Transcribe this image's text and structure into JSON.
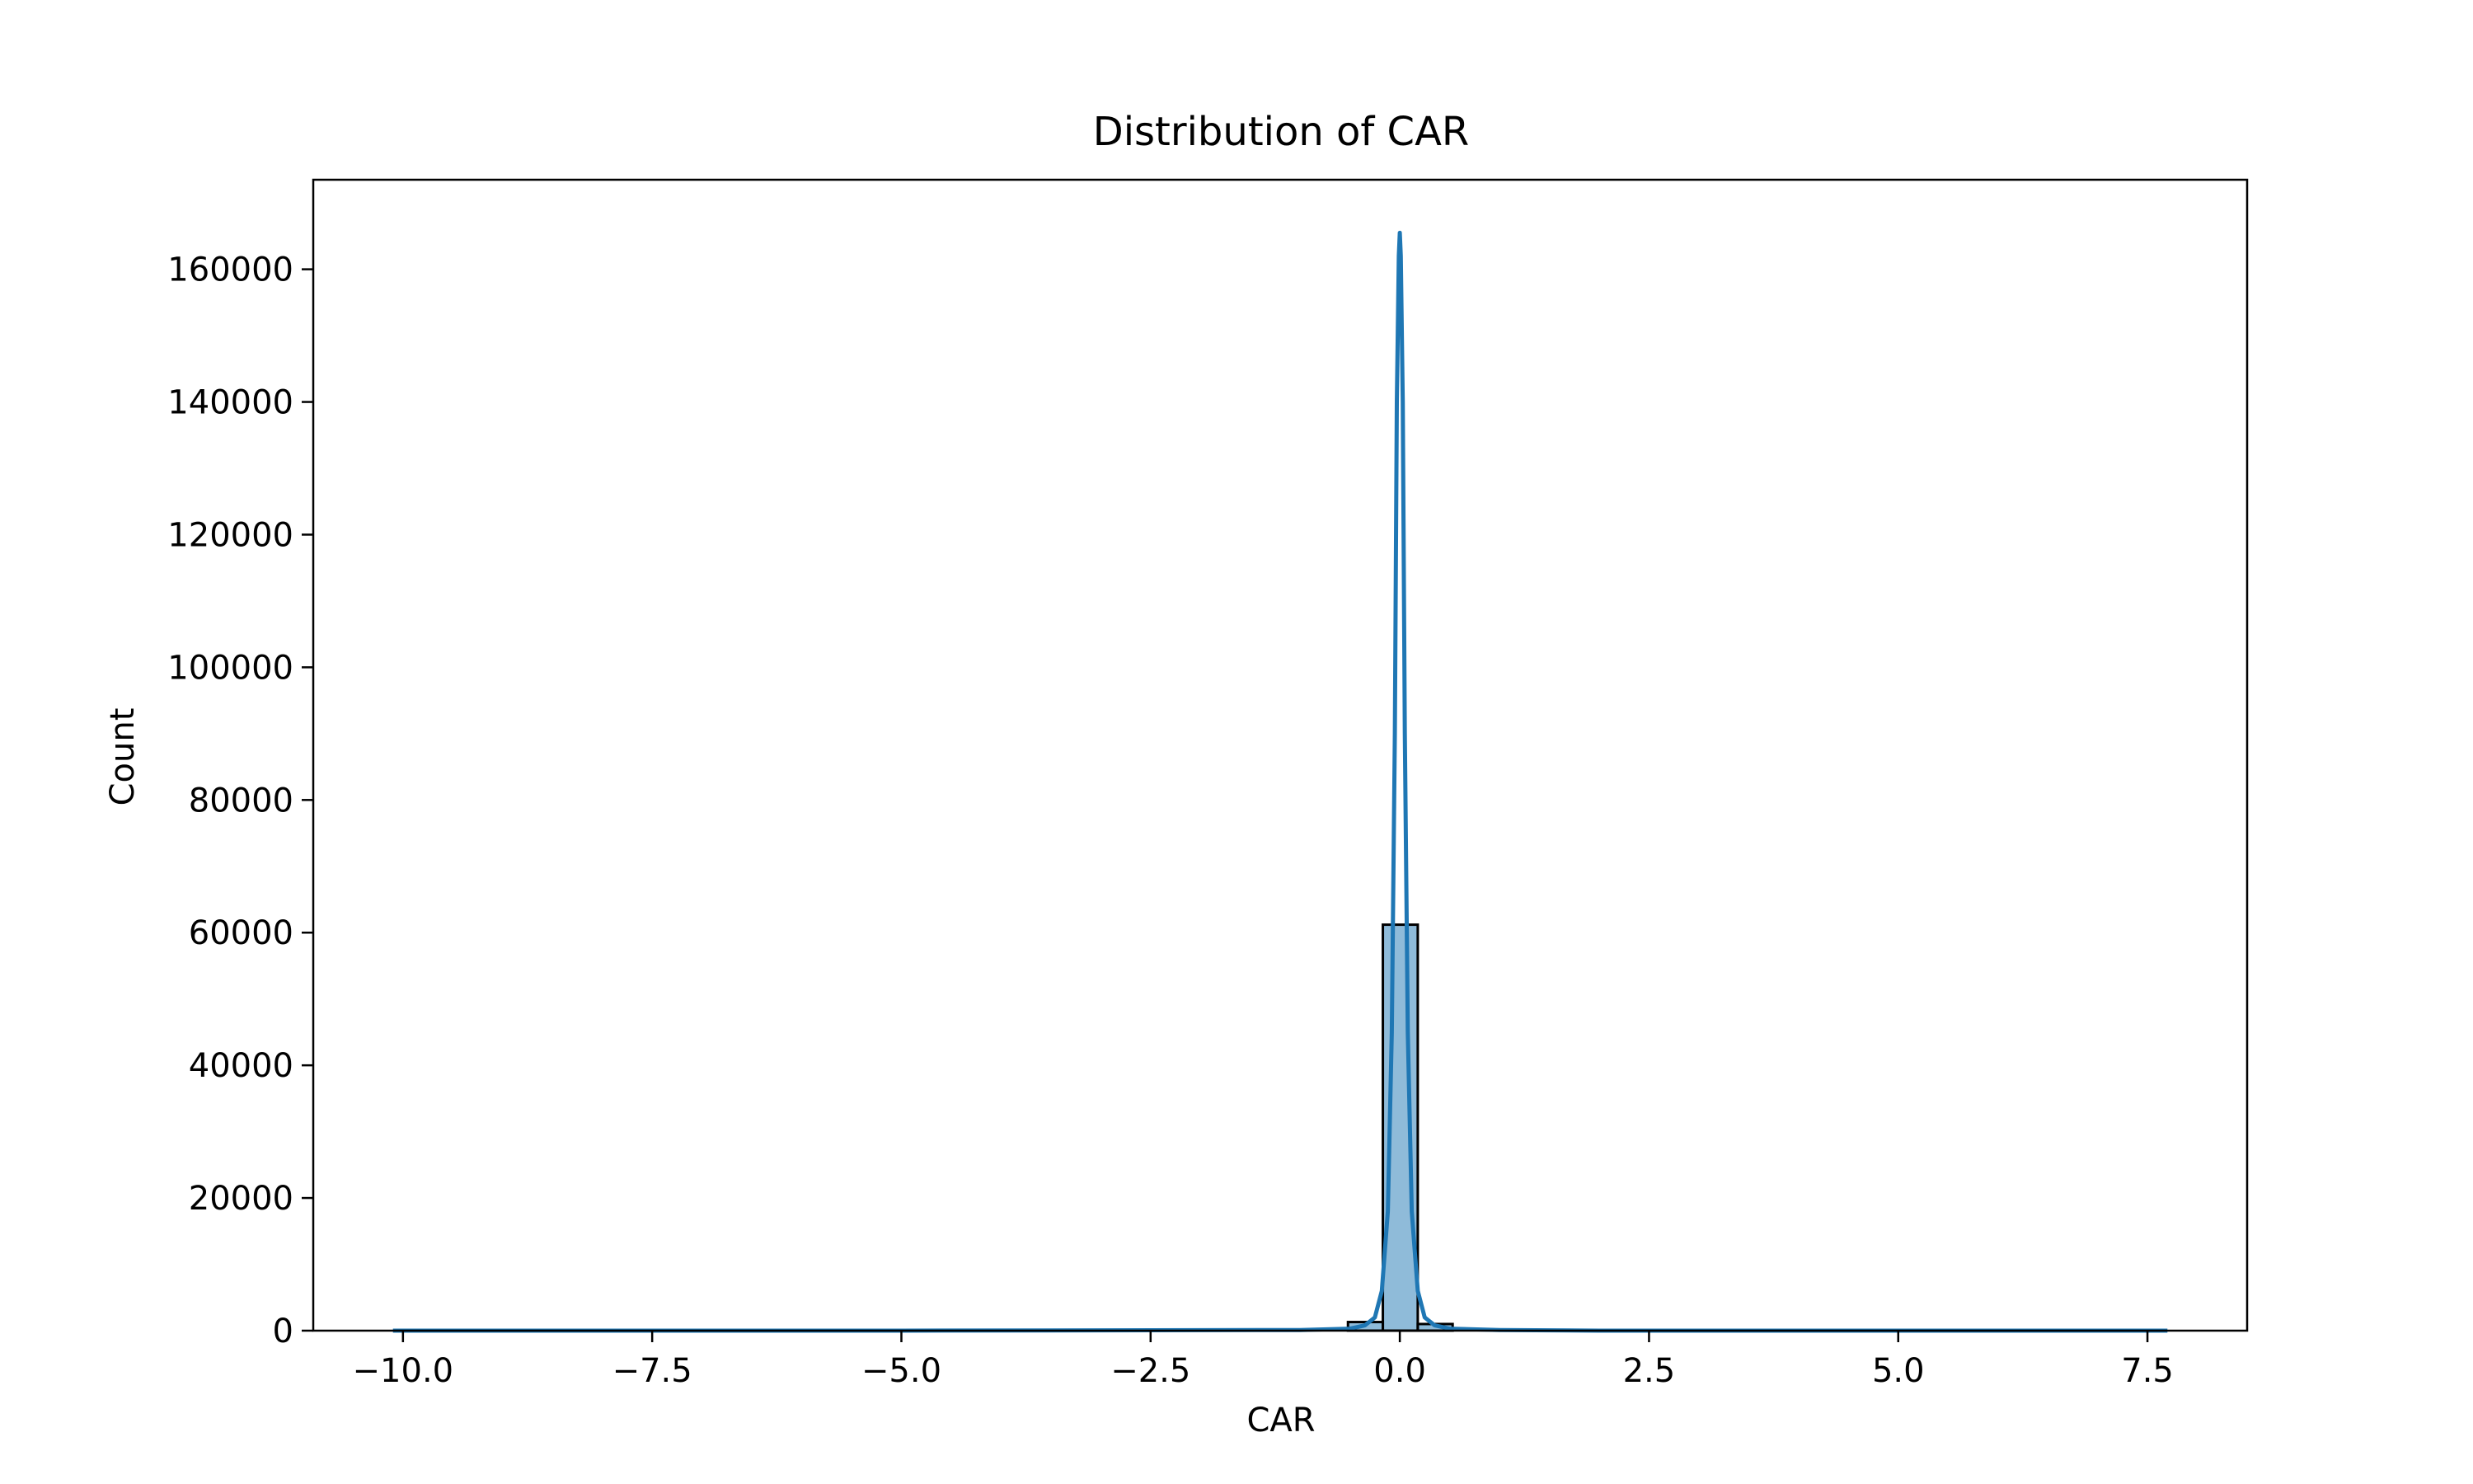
{
  "chart_data": {
    "type": "histogram",
    "title": "Distribution of CAR",
    "xlabel": "CAR",
    "ylabel": "Count",
    "xlim": [
      -10.9,
      8.5
    ],
    "ylim": [
      0,
      173500
    ],
    "x_ticks": [
      -10.0,
      -7.5,
      -5.0,
      -2.5,
      0.0,
      2.5,
      5.0,
      7.5
    ],
    "x_tick_labels": [
      "−10.0",
      "−7.5",
      "−5.0",
      "−2.5",
      "0.0",
      "2.5",
      "5.0",
      "7.5"
    ],
    "y_ticks": [
      0,
      20000,
      40000,
      60000,
      80000,
      100000,
      120000,
      140000,
      160000
    ],
    "y_tick_labels": [
      "0",
      "20000",
      "40000",
      "60000",
      "80000",
      "100000",
      "120000",
      "140000",
      "160000"
    ],
    "grid": false,
    "bin_width": 0.35,
    "bins": [
      {
        "x0": -0.52,
        "x1": -0.17,
        "count": 1300
      },
      {
        "x0": -0.17,
        "x1": 0.18,
        "count": 61200
      },
      {
        "x0": 0.18,
        "x1": 0.53,
        "count": 1000
      }
    ],
    "bar_color": "#1f77b4",
    "kde_color": "#1f77b4",
    "kde": {
      "x": [
        -10.1,
        -5.0,
        -1.0,
        -0.5,
        -0.35,
        -0.25,
        -0.18,
        -0.12,
        -0.08,
        -0.05,
        -0.03,
        -0.01,
        0.0,
        0.01,
        0.03,
        0.05,
        0.08,
        0.12,
        0.18,
        0.25,
        0.35,
        0.5,
        1.0,
        2.0,
        5.0,
        7.7
      ],
      "y": [
        0,
        0,
        100,
        300,
        800,
        2000,
        6000,
        18000,
        45000,
        90000,
        140000,
        162000,
        165500,
        162000,
        140000,
        90000,
        45000,
        18000,
        6000,
        2000,
        800,
        300,
        100,
        0,
        0,
        0
      ]
    }
  }
}
